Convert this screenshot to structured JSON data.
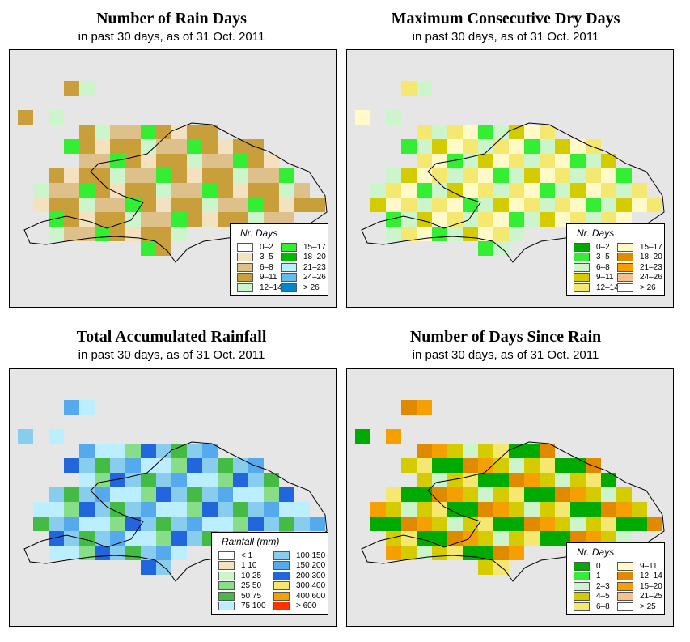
{
  "panels": [
    {
      "title": "Number of Rain Days",
      "subtitle": "in past 30 days, as of  31 Oct. 2011",
      "legend": {
        "title": "Nr. Days",
        "items": [
          {
            "label": "0–2",
            "color": "#ffffff"
          },
          {
            "label": "3–5",
            "color": "#f3e1c0"
          },
          {
            "label": "6–8",
            "color": "#ddc08a"
          },
          {
            "label": "9–11",
            "color": "#c89f3a"
          },
          {
            "label": "12–14",
            "color": "#ccf5cc"
          },
          {
            "label": "15–17",
            "color": "#33ee33"
          },
          {
            "label": "18–20",
            "color": "#00bb00"
          },
          {
            "label": "21–23",
            "color": "#bbeeff"
          },
          {
            "label": "24–26",
            "color": "#66bbee"
          },
          {
            "label": "> 26",
            "color": "#0088cc"
          }
        ]
      },
      "grid_palette": [
        "#c89f3a",
        "#ddc08a",
        "#f3e1c0",
        "#ccf5cc",
        "#33ee33",
        "#c89f3a",
        "#ddc08a",
        "#c89f3a"
      ]
    },
    {
      "title": "Maximum Consecutive Dry Days",
      "subtitle": "in past 30 days, as of  31 Oct. 2011",
      "legend": {
        "title": "Nr. Days",
        "items": [
          {
            "label": "0–2",
            "color": "#00aa00"
          },
          {
            "label": "3–5",
            "color": "#33ee33"
          },
          {
            "label": "6–8",
            "color": "#ccf5cc"
          },
          {
            "label": "9–11",
            "color": "#d4cc00"
          },
          {
            "label": "12–14",
            "color": "#f5e870"
          },
          {
            "label": "15–17",
            "color": "#fffac8"
          },
          {
            "label": "18–20",
            "color": "#e08a00"
          },
          {
            "label": "21–23",
            "color": "#f5a000"
          },
          {
            "label": "24–26",
            "color": "#f8c090"
          },
          {
            "label": "> 26",
            "color": "#ffffff"
          }
        ]
      },
      "grid_palette": [
        "#ccf5cc",
        "#f5e870",
        "#fffac8",
        "#d4cc00",
        "#ccf5cc",
        "#33ee33",
        "#fffac8",
        "#f5e870"
      ]
    },
    {
      "title": "Total Accumulated Rainfall",
      "subtitle": "in past 30 days, as of  31 Oct. 2011",
      "legend": {
        "title": "Rainfall (mm)",
        "items": [
          {
            "label": "< 1",
            "color": "#ffffff"
          },
          {
            "label": "1    10",
            "color": "#f3e1c0"
          },
          {
            "label": "10    25",
            "color": "#ccf5cc"
          },
          {
            "label": "25    50",
            "color": "#88dd88"
          },
          {
            "label": "50    75",
            "color": "#44bb44"
          },
          {
            "label": "75   100",
            "color": "#bbeeff"
          },
          {
            "label": "100   150",
            "color": "#88ccee"
          },
          {
            "label": "150   200",
            "color": "#55aaee"
          },
          {
            "label": "200   300",
            "color": "#2266dd"
          },
          {
            "label": "300   400",
            "color": "#f5e870"
          },
          {
            "label": "400   600",
            "color": "#f5a000"
          },
          {
            "label": "> 600",
            "color": "#ff3300"
          }
        ]
      },
      "grid_palette": [
        "#bbeeff",
        "#88ccee",
        "#55aaee",
        "#88dd88",
        "#44bb44",
        "#bbeeff",
        "#2266dd",
        "#88ccee"
      ]
    },
    {
      "title": "Number of Days Since Rain",
      "subtitle": "in past 30 days, as of  31 Oct. 2011",
      "legend": {
        "title": "Nr. Days",
        "items": [
          {
            "label": "0",
            "color": "#00aa00"
          },
          {
            "label": "1",
            "color": "#33ee33"
          },
          {
            "label": "2–3",
            "color": "#ccf5cc"
          },
          {
            "label": "4–5",
            "color": "#d4cc00"
          },
          {
            "label": "6–8",
            "color": "#f5e870"
          },
          {
            "label": "9–11",
            "color": "#fffac8"
          },
          {
            "label": "12–14",
            "color": "#e08a00"
          },
          {
            "label": "15–20",
            "color": "#f5a000"
          },
          {
            "label": "21–25",
            "color": "#f8c090"
          },
          {
            "label": "> 25",
            "color": "#ffffff"
          }
        ]
      },
      "grid_palette": [
        "#00aa00",
        "#d4cc00",
        "#f5e870",
        "#e08a00",
        "#ccf5cc",
        "#00aa00",
        "#f5a000",
        "#d4cc00"
      ]
    }
  ]
}
